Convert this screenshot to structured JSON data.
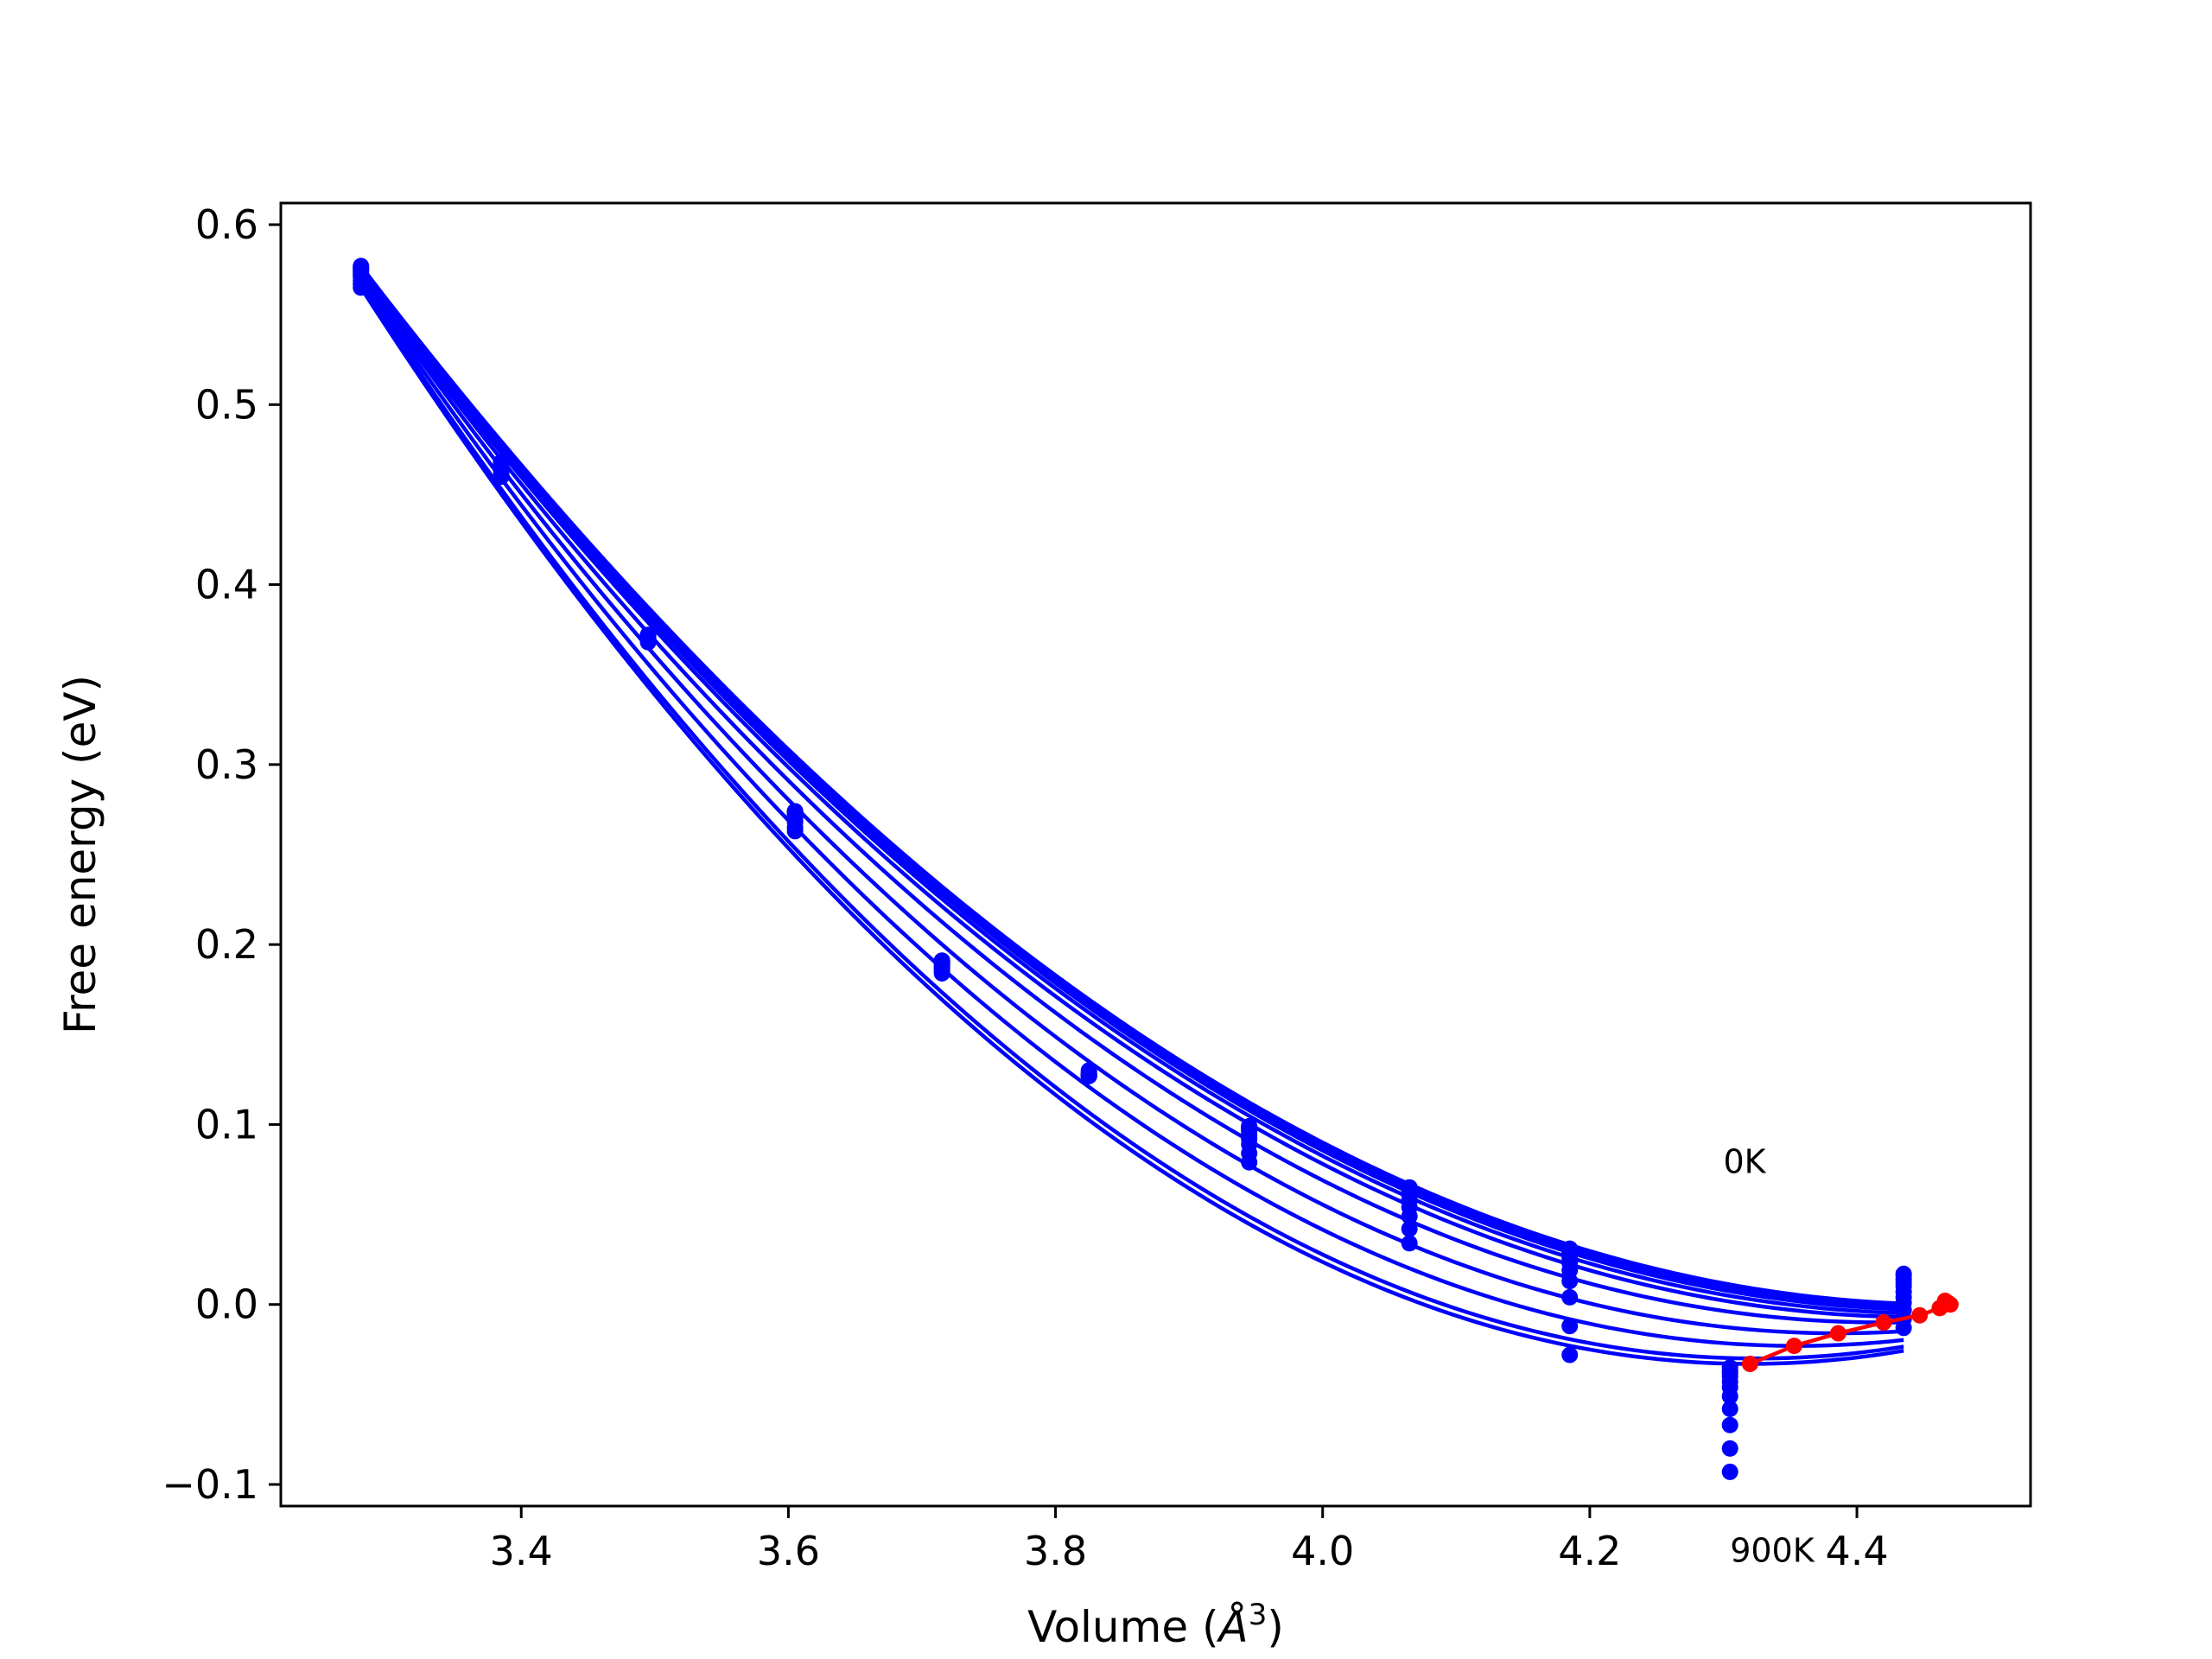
{
  "chart_data": {
    "type": "scatter",
    "title": "",
    "xlabel": "Volume (Å³)",
    "xlabel_main": "Volume (",
    "xlabel_unit": "Å",
    "xlabel_sup": "3",
    "xlabel_close": ")",
    "ylabel": "Free energy (eV)",
    "xlim": [
      3.22,
      4.53
    ],
    "ylim": [
      -0.112,
      0.612
    ],
    "xticks": [
      3.4,
      3.6,
      3.8,
      4.0,
      4.2,
      4.4
    ],
    "xtick_labels": [
      "3.4",
      "3.6",
      "3.8",
      "4.0",
      "4.2",
      "4.4"
    ],
    "yticks": [
      -0.1,
      0.0,
      0.1,
      0.2,
      0.3,
      0.4,
      0.5,
      0.6
    ],
    "ytick_labels": [
      "−0.1",
      "0.0",
      "0.1",
      "0.2",
      "0.3",
      "0.4",
      "0.5",
      "0.6"
    ],
    "grid": false,
    "colors": {
      "fits": "#0000ff",
      "points": "#0000ff",
      "minima": "#ff0000"
    },
    "volumes": [
      3.28,
      3.385,
      3.495,
      3.605,
      3.715,
      3.825,
      3.945,
      4.065,
      4.185,
      4.305,
      4.435
    ],
    "fit_x_range": [
      3.28,
      4.435
    ],
    "series": [
      {
        "values": [
          0.577,
          0.468,
          0.372,
          0.274,
          0.191,
          0.127,
          0.099,
          0.065,
          0.031,
          -0.035,
          0.017
        ]
      },
      {
        "values": [
          0.576,
          0.468,
          0.372,
          0.274,
          0.191,
          0.127,
          0.099,
          0.065,
          0.03,
          -0.037,
          0.016
        ]
      },
      {
        "values": [
          0.576,
          0.468,
          0.372,
          0.274,
          0.191,
          0.127,
          0.098,
          0.064,
          0.029,
          -0.038,
          0.014
        ]
      },
      {
        "values": [
          0.575,
          0.467,
          0.372,
          0.274,
          0.19,
          0.127,
          0.098,
          0.064,
          0.028,
          -0.04,
          0.012
        ]
      },
      {
        "values": [
          0.574,
          0.467,
          0.371,
          0.273,
          0.19,
          0.127,
          0.097,
          0.063,
          0.026,
          -0.043,
          0.01
        ]
      },
      {
        "values": [
          0.573,
          0.466,
          0.371,
          0.272,
          0.189,
          0.127,
          0.096,
          0.061,
          0.023,
          -0.046,
          0.007
        ]
      },
      {
        "values": [
          0.572,
          0.465,
          0.37,
          0.271,
          0.188,
          0.127,
          0.094,
          0.058,
          0.019,
          -0.051,
          0.004
        ]
      },
      {
        "values": [
          0.571,
          0.464,
          0.37,
          0.27,
          0.187,
          0.128,
          0.092,
          0.054,
          0.013,
          -0.058,
          0.001
        ]
      },
      {
        "values": [
          0.569,
          0.463,
          0.369,
          0.268,
          0.186,
          0.128,
          0.089,
          0.049,
          0.004,
          -0.067,
          -0.003
        ]
      },
      {
        "values": [
          0.567,
          0.461,
          0.369,
          0.265,
          0.185,
          0.129,
          0.084,
          0.042,
          -0.012,
          -0.08,
          -0.008
        ]
      },
      {
        "values": [
          0.565,
          0.46,
          0.368,
          0.263,
          0.184,
          0.13,
          0.079,
          0.034,
          -0.028,
          -0.093,
          -0.013
        ]
      }
    ],
    "fits": [
      {
        "min_x": 4.47,
        "min_y": 0.0,
        "curvature": 0.535
      },
      {
        "min_x": 4.468,
        "min_y": -0.001,
        "curvature": 0.545
      },
      {
        "min_x": 4.466,
        "min_y": -0.002,
        "curvature": 0.555
      },
      {
        "min_x": 4.463,
        "min_y": -0.003,
        "curvature": 0.565
      },
      {
        "min_x": 4.458,
        "min_y": -0.005,
        "curvature": 0.575
      },
      {
        "min_x": 4.447,
        "min_y": -0.007,
        "curvature": 0.59
      },
      {
        "min_x": 4.42,
        "min_y": -0.01,
        "curvature": 0.61
      },
      {
        "min_x": 4.386,
        "min_y": -0.016,
        "curvature": 0.64
      },
      {
        "min_x": 4.355,
        "min_y": -0.023,
        "curvature": 0.68
      },
      {
        "min_x": 4.325,
        "min_y": -0.03,
        "curvature": 0.72
      },
      {
        "min_x": 4.32,
        "min_y": -0.033,
        "curvature": 0.76
      }
    ],
    "minima_line": {
      "x": [
        4.32,
        4.353,
        4.386,
        4.42,
        4.447,
        4.462,
        4.466,
        4.468,
        4.47
      ],
      "y": [
        -0.033,
        -0.023,
        -0.016,
        -0.01,
        -0.006,
        -0.002,
        0.002,
        0.001,
        0.0
      ]
    },
    "annotations": {
      "top_label": {
        "text": "0K",
        "x": 4.3,
        "y": 0.073
      },
      "bottom_label": {
        "text": "900K",
        "x": 4.305,
        "y": -0.143
      }
    }
  }
}
